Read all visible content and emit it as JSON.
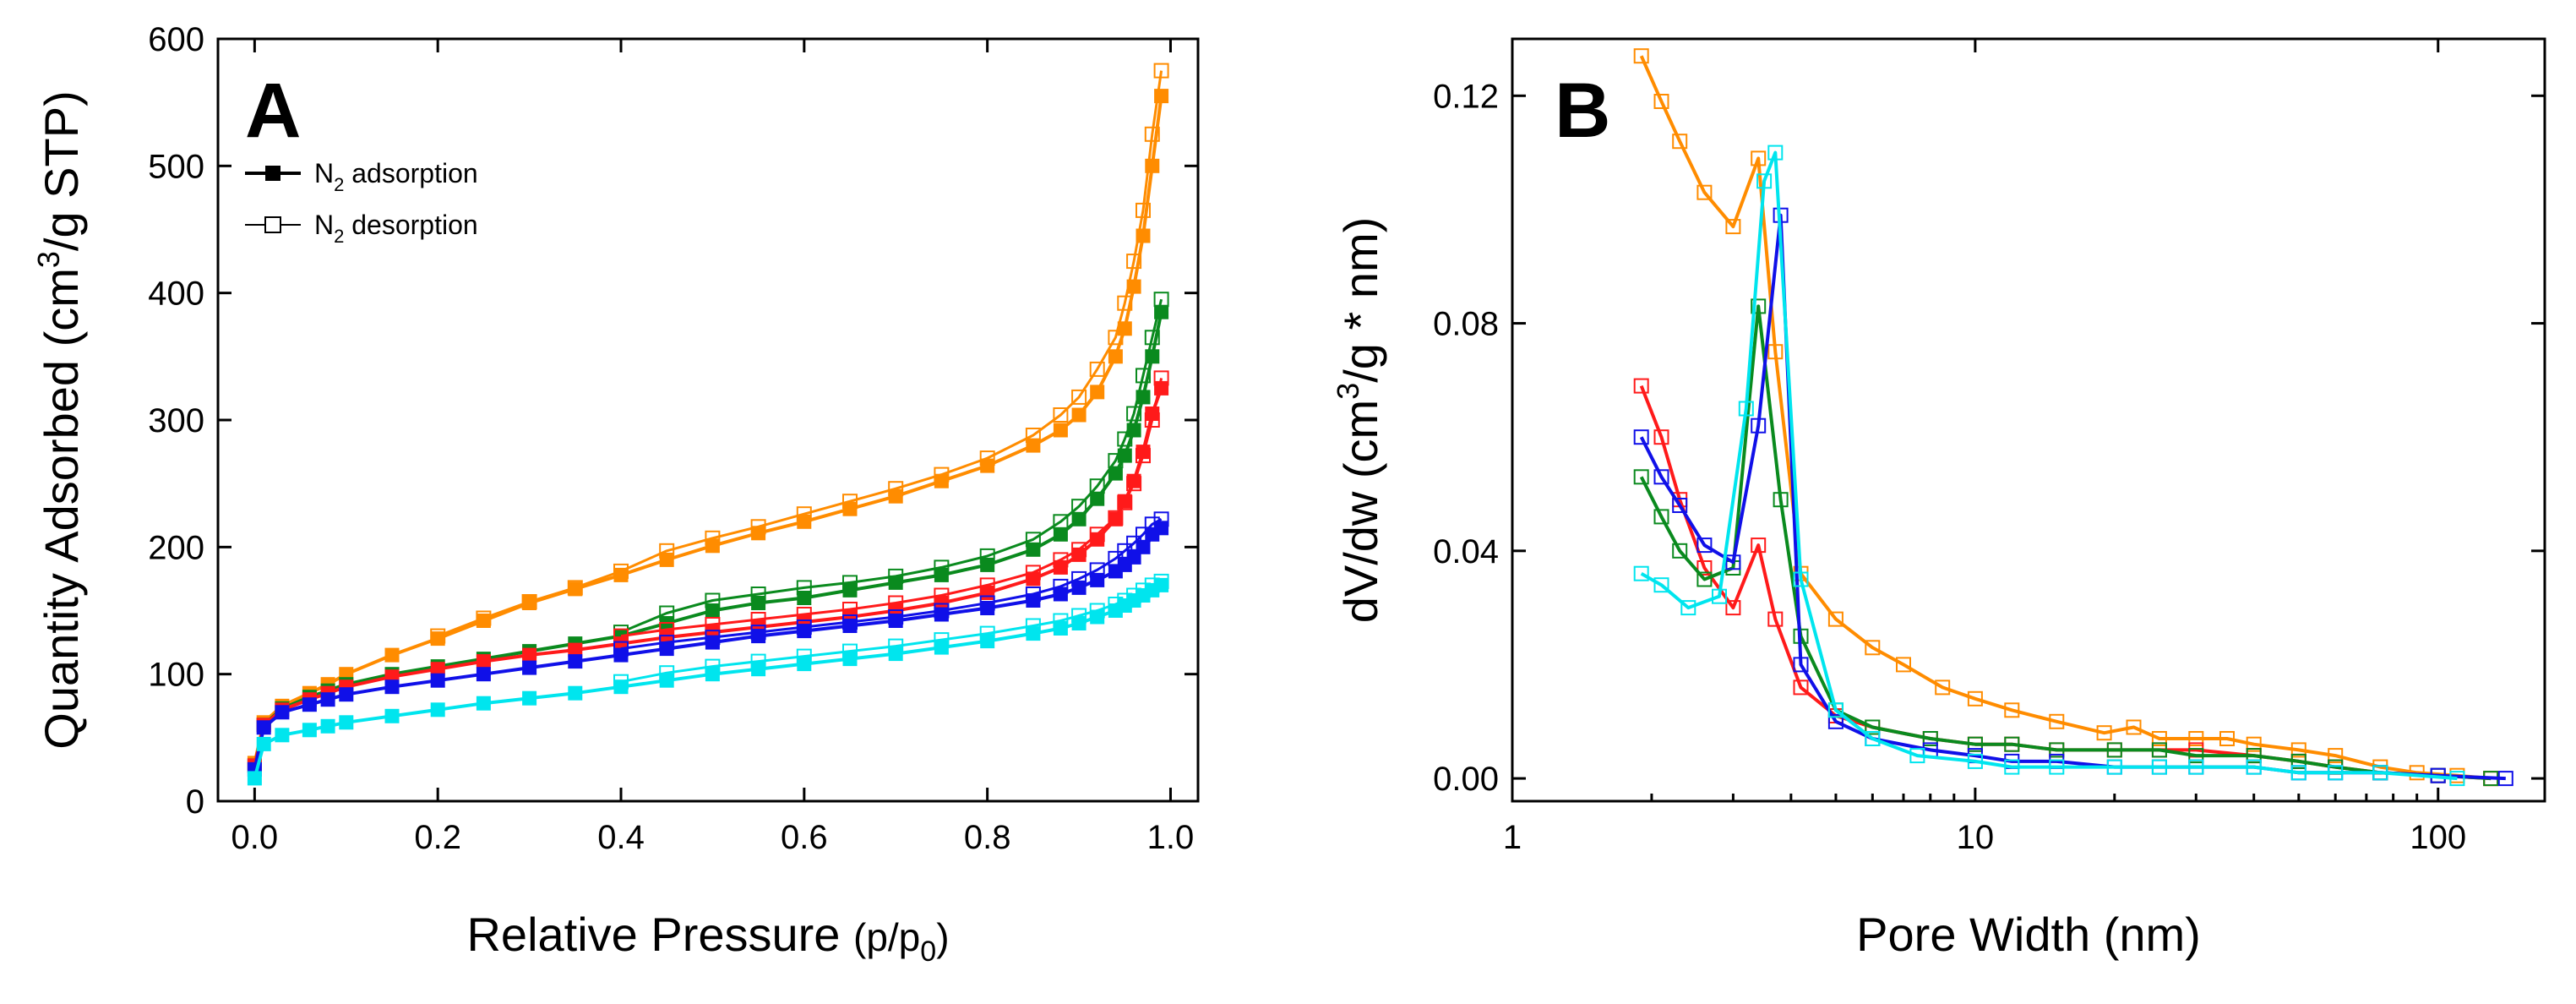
{
  "chart_data": [
    {
      "type": "line",
      "panel_label": "A",
      "xlabel": "Relative Pressure (p/p0)",
      "xlabel_main": "Relative Pressure ",
      "xlabel_unit_pre": "(p/p",
      "xlabel_unit_sub": "0",
      "xlabel_unit_post": ")",
      "ylabel": "Quantity Adsorbed (cm3/g STP)",
      "ylabel_main": "Quantity Adsorbed (cm",
      "ylabel_sup": "3",
      "ylabel_post": "/g STP)",
      "xlim": [
        -0.04,
        1.03
      ],
      "ylim": [
        0,
        600
      ],
      "xticks": [
        0.0,
        0.2,
        0.4,
        0.6,
        0.8,
        1.0
      ],
      "xtick_labels": [
        "0.0",
        "0.2",
        "0.4",
        "0.6",
        "0.8",
        "1.0"
      ],
      "yticks": [
        0,
        100,
        200,
        300,
        400,
        500,
        600
      ],
      "ytick_labels": [
        "0",
        "100",
        "200",
        "300",
        "400",
        "500",
        "600"
      ],
      "legend": {
        "placement": "top-left",
        "entries": [
          {
            "label": "N2 adsorption",
            "main": "N",
            "sub": "2",
            "rest": " adsorption",
            "marker": "filled-square"
          },
          {
            "label": "N2 desorption",
            "main": "N",
            "sub": "2",
            "rest": " desorption",
            "marker": "open-square"
          }
        ]
      },
      "series": [
        {
          "name": "orange",
          "color": "#ff8c00",
          "adsorption": {
            "x": [
              0.0,
              0.01,
              0.03,
              0.06,
              0.08,
              0.1,
              0.15,
              0.2,
              0.25,
              0.3,
              0.35,
              0.4,
              0.45,
              0.5,
              0.55,
              0.6,
              0.65,
              0.7,
              0.75,
              0.8,
              0.85,
              0.88,
              0.9,
              0.92,
              0.94,
              0.95,
              0.96,
              0.97,
              0.98,
              0.99
            ],
            "y": [
              30,
              62,
              75,
              85,
              92,
              100,
              115,
              128,
              142,
              156,
              167,
              178,
              190,
              201,
              211,
              220,
              230,
              240,
              252,
              264,
              280,
              292,
              304,
              322,
              350,
              372,
              405,
              445,
              500,
              555
            ]
          },
          "desorption": {
            "x": [
              0.99,
              0.98,
              0.97,
              0.96,
              0.95,
              0.94,
              0.92,
              0.9,
              0.88,
              0.85,
              0.8,
              0.75,
              0.7,
              0.65,
              0.6,
              0.55,
              0.5,
              0.45,
              0.4,
              0.35,
              0.3,
              0.25,
              0.2
            ],
            "y": [
              575,
              525,
              465,
              425,
              392,
              365,
              340,
              318,
              304,
              288,
              270,
              257,
              246,
              236,
              226,
              216,
              207,
              197,
              181,
              168,
              157,
              144,
              130
            ]
          }
        },
        {
          "name": "green",
          "color": "#0a8a1e",
          "adsorption": {
            "x": [
              0.0,
              0.01,
              0.03,
              0.06,
              0.08,
              0.1,
              0.15,
              0.2,
              0.25,
              0.3,
              0.35,
              0.4,
              0.45,
              0.5,
              0.55,
              0.6,
              0.65,
              0.7,
              0.75,
              0.8,
              0.85,
              0.88,
              0.9,
              0.92,
              0.94,
              0.95,
              0.96,
              0.97,
              0.98,
              0.99
            ],
            "y": [
              28,
              60,
              73,
              82,
              87,
              92,
              100,
              106,
              112,
              118,
              124,
              130,
              140,
              150,
              156,
              160,
              166,
              172,
              178,
              186,
              198,
              210,
              222,
              238,
              258,
              272,
              292,
              318,
              350,
              385
            ]
          },
          "desorption": {
            "x": [
              0.99,
              0.98,
              0.97,
              0.96,
              0.95,
              0.94,
              0.92,
              0.9,
              0.88,
              0.85,
              0.8,
              0.75,
              0.7,
              0.65,
              0.6,
              0.55,
              0.5,
              0.45,
              0.4
            ],
            "y": [
              395,
              365,
              335,
              305,
              285,
              268,
              248,
              232,
              220,
              206,
              193,
              184,
              177,
              172,
              168,
              163,
              158,
              148,
              133
            ]
          }
        },
        {
          "name": "red",
          "color": "#ff1a1a",
          "adsorption": {
            "x": [
              0.0,
              0.01,
              0.03,
              0.06,
              0.08,
              0.1,
              0.15,
              0.2,
              0.25,
              0.3,
              0.35,
              0.4,
              0.45,
              0.5,
              0.55,
              0.6,
              0.65,
              0.7,
              0.75,
              0.8,
              0.85,
              0.88,
              0.9,
              0.92,
              0.94,
              0.95,
              0.96,
              0.97,
              0.98,
              0.99
            ],
            "y": [
              28,
              60,
              72,
              80,
              85,
              90,
              98,
              104,
              110,
              115,
              119,
              124,
              129,
              133,
              137,
              141,
              145,
              150,
              156,
              164,
              175,
              184,
              194,
              206,
              222,
              236,
              252,
              275,
              305,
              325
            ]
          },
          "desorption": {
            "x": [
              0.99,
              0.98,
              0.97,
              0.96,
              0.95,
              0.94,
              0.92,
              0.9,
              0.88,
              0.85,
              0.8,
              0.75,
              0.7,
              0.65,
              0.6,
              0.55,
              0.5,
              0.45,
              0.4
            ],
            "y": [
              333,
              300,
              272,
              250,
              235,
              223,
              210,
              198,
              190,
              180,
              170,
              162,
              156,
              151,
              147,
              143,
              139,
              135,
              130
            ]
          }
        },
        {
          "name": "blue",
          "color": "#1010e8",
          "adsorption": {
            "x": [
              0.0,
              0.01,
              0.03,
              0.06,
              0.08,
              0.1,
              0.15,
              0.2,
              0.25,
              0.3,
              0.35,
              0.4,
              0.45,
              0.5,
              0.55,
              0.6,
              0.65,
              0.7,
              0.75,
              0.8,
              0.85,
              0.88,
              0.9,
              0.92,
              0.94,
              0.95,
              0.96,
              0.97,
              0.98,
              0.99
            ],
            "y": [
              25,
              58,
              70,
              76,
              80,
              84,
              90,
              95,
              100,
              105,
              110,
              115,
              120,
              125,
              130,
              134,
              138,
              142,
              147,
              152,
              158,
              163,
              168,
              174,
              181,
              186,
              192,
              200,
              210,
              215
            ]
          },
          "desorption": {
            "x": [
              0.99,
              0.98,
              0.97,
              0.96,
              0.95,
              0.94,
              0.92,
              0.9,
              0.88,
              0.85,
              0.8,
              0.75,
              0.7,
              0.65,
              0.6,
              0.55,
              0.5,
              0.45,
              0.4
            ],
            "y": [
              222,
              218,
              210,
              203,
              197,
              191,
              182,
              175,
              169,
              163,
              156,
              150,
              145,
              141,
              137,
              133,
              129,
              125,
              120
            ]
          }
        },
        {
          "name": "cyan",
          "color": "#00e5ee",
          "adsorption": {
            "x": [
              0.0,
              0.01,
              0.03,
              0.06,
              0.08,
              0.1,
              0.15,
              0.2,
              0.25,
              0.3,
              0.35,
              0.4,
              0.45,
              0.5,
              0.55,
              0.6,
              0.65,
              0.7,
              0.75,
              0.8,
              0.85,
              0.88,
              0.9,
              0.92,
              0.94,
              0.95,
              0.96,
              0.97,
              0.98,
              0.99
            ],
            "y": [
              18,
              45,
              52,
              56,
              59,
              62,
              67,
              72,
              77,
              81,
              85,
              90,
              95,
              100,
              104,
              108,
              112,
              116,
              121,
              126,
              132,
              136,
              140,
              145,
              150,
              154,
              158,
              162,
              166,
              170
            ]
          },
          "desorption": {
            "x": [
              0.99,
              0.98,
              0.97,
              0.96,
              0.95,
              0.94,
              0.92,
              0.9,
              0.88,
              0.85,
              0.8,
              0.75,
              0.7,
              0.65,
              0.6,
              0.55,
              0.5,
              0.45,
              0.4
            ],
            "y": [
              173,
              170,
              166,
              162,
              158,
              155,
              150,
              146,
              142,
              138,
              132,
              127,
              122,
              118,
              114,
              110,
              106,
              101,
              94
            ]
          }
        }
      ]
    },
    {
      "type": "line",
      "panel_label": "B",
      "xscale": "log",
      "xlabel": "Pore Width (nm)",
      "ylabel": "dV/dw (cm3/g * nm)",
      "ylabel_main": "dV/dw (cm",
      "ylabel_sup": "3",
      "ylabel_post": "/g * nm)",
      "xlim": [
        1,
        170
      ],
      "ylim": [
        -0.004,
        0.13
      ],
      "xticks": [
        1,
        10,
        100
      ],
      "xtick_labels": [
        "1",
        "10",
        "100"
      ],
      "yticks": [
        0.0,
        0.04,
        0.08,
        0.12
      ],
      "ytick_labels": [
        "0.00",
        "0.04",
        "0.08",
        "0.12"
      ],
      "series": [
        {
          "name": "orange",
          "color": "#ff8c00",
          "x": [
            1.9,
            2.1,
            2.3,
            2.6,
            3.0,
            3.4,
            3.7,
            4.2,
            5.0,
            6.0,
            7.0,
            8.5,
            10,
            12,
            15,
            19,
            22,
            25,
            30,
            35,
            40,
            50,
            60,
            75,
            90,
            110,
            130
          ],
          "y": [
            0.127,
            0.119,
            0.112,
            0.103,
            0.097,
            0.109,
            0.075,
            0.036,
            0.028,
            0.023,
            0.02,
            0.016,
            0.014,
            0.012,
            0.01,
            0.008,
            0.009,
            0.007,
            0.007,
            0.007,
            0.006,
            0.005,
            0.004,
            0.002,
            0.001,
            0.0005,
            0.0
          ]
        },
        {
          "name": "red",
          "color": "#ff1a1a",
          "x": [
            1.9,
            2.1,
            2.3,
            2.6,
            3.0,
            3.4,
            3.7,
            4.2,
            5.0,
            6.0,
            8.0,
            10,
            12,
            15,
            20,
            25,
            30,
            40,
            50,
            60,
            75,
            100,
            130
          ],
          "y": [
            0.069,
            0.06,
            0.049,
            0.037,
            0.03,
            0.041,
            0.028,
            0.016,
            0.011,
            0.009,
            0.007,
            0.006,
            0.006,
            0.005,
            0.005,
            0.005,
            0.005,
            0.004,
            0.003,
            0.002,
            0.001,
            0.0005,
            0.0
          ]
        },
        {
          "name": "green",
          "color": "#0a8a1e",
          "x": [
            1.9,
            2.1,
            2.3,
            2.6,
            3.0,
            3.4,
            3.8,
            4.2,
            5.0,
            6.0,
            8.0,
            10,
            12,
            15,
            20,
            25,
            30,
            40,
            50,
            60,
            75,
            100,
            130
          ],
          "y": [
            0.053,
            0.046,
            0.04,
            0.035,
            0.037,
            0.083,
            0.049,
            0.025,
            0.012,
            0.009,
            0.007,
            0.006,
            0.006,
            0.005,
            0.005,
            0.005,
            0.004,
            0.004,
            0.003,
            0.002,
            0.001,
            0.0005,
            0.0
          ]
        },
        {
          "name": "blue",
          "color": "#1010e8",
          "x": [
            1.9,
            2.1,
            2.3,
            2.6,
            3.0,
            3.4,
            3.8,
            4.2,
            5.0,
            6.0,
            8.0,
            10,
            12,
            15,
            20,
            25,
            30,
            40,
            50,
            60,
            75,
            100,
            140
          ],
          "y": [
            0.06,
            0.053,
            0.048,
            0.041,
            0.038,
            0.062,
            0.099,
            0.02,
            0.01,
            0.007,
            0.005,
            0.004,
            0.003,
            0.003,
            0.002,
            0.002,
            0.002,
            0.002,
            0.001,
            0.001,
            0.001,
            0.0005,
            0.0
          ]
        },
        {
          "name": "cyan",
          "color": "#00e5ee",
          "x": [
            1.9,
            2.1,
            2.4,
            2.8,
            3.2,
            3.5,
            3.7,
            4.2,
            5.0,
            6.0,
            7.5,
            10,
            12,
            15,
            20,
            25,
            30,
            40,
            50,
            60,
            75,
            110
          ],
          "y": [
            0.036,
            0.034,
            0.03,
            0.032,
            0.065,
            0.105,
            0.11,
            0.035,
            0.012,
            0.007,
            0.004,
            0.003,
            0.002,
            0.002,
            0.002,
            0.002,
            0.002,
            0.002,
            0.001,
            0.001,
            0.001,
            0.0
          ]
        }
      ]
    }
  ]
}
